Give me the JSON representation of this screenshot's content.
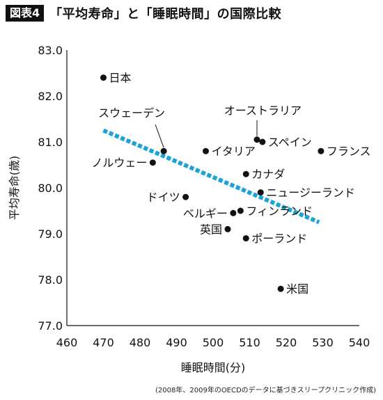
{
  "header": {
    "badge": "図表4",
    "title": "「平均寿命」と「睡眠時間」の国際比較"
  },
  "footnote": "(2008年、2009年のOECDのデータに基づきスリープクリニック作成)",
  "colors": {
    "trend": "#1aa3d9",
    "point": "#111111"
  },
  "chart_data": {
    "type": "scatter",
    "title": "「平均寿命」と「睡眠時間」の国際比較",
    "xlabel": "睡眠時間(分)",
    "ylabel": "平均寿命(歳)",
    "xlim": [
      460,
      540
    ],
    "ylim": [
      77.0,
      83.0
    ],
    "xticks": [
      460,
      470,
      480,
      490,
      500,
      510,
      520,
      530,
      540
    ],
    "yticks": [
      "77.0",
      "78.0",
      "79.0",
      "80.0",
      "81.0",
      "82.0",
      "83.0"
    ],
    "grid": false,
    "points": [
      {
        "label": "日本",
        "x": 470,
        "y": 82.4
      },
      {
        "label": "スウェーデン",
        "x": 486.5,
        "y": 80.8
      },
      {
        "label": "ノルウェー",
        "x": 483.5,
        "y": 80.55
      },
      {
        "label": "ドイツ",
        "x": 492.5,
        "y": 79.8
      },
      {
        "label": "イタリア",
        "x": 498,
        "y": 80.8
      },
      {
        "label": "オーストラリア",
        "x": 512,
        "y": 81.05
      },
      {
        "label": "スペイン",
        "x": 513.5,
        "y": 81.0
      },
      {
        "label": "フランス",
        "x": 529.5,
        "y": 80.8
      },
      {
        "label": "カナダ",
        "x": 509,
        "y": 80.3
      },
      {
        "label": "ニュージーランド",
        "x": 513,
        "y": 79.9
      },
      {
        "label": "ベルギー",
        "x": 505.5,
        "y": 79.45
      },
      {
        "label": "フィンランド",
        "x": 507.5,
        "y": 79.5
      },
      {
        "label": "英国",
        "x": 504,
        "y": 79.1
      },
      {
        "label": "ポーランド",
        "x": 509,
        "y": 78.9
      },
      {
        "label": "米国",
        "x": 518.5,
        "y": 77.8
      }
    ],
    "trendline": {
      "style": "dashed",
      "x": [
        470,
        529
      ],
      "y": [
        81.25,
        79.25
      ]
    }
  }
}
